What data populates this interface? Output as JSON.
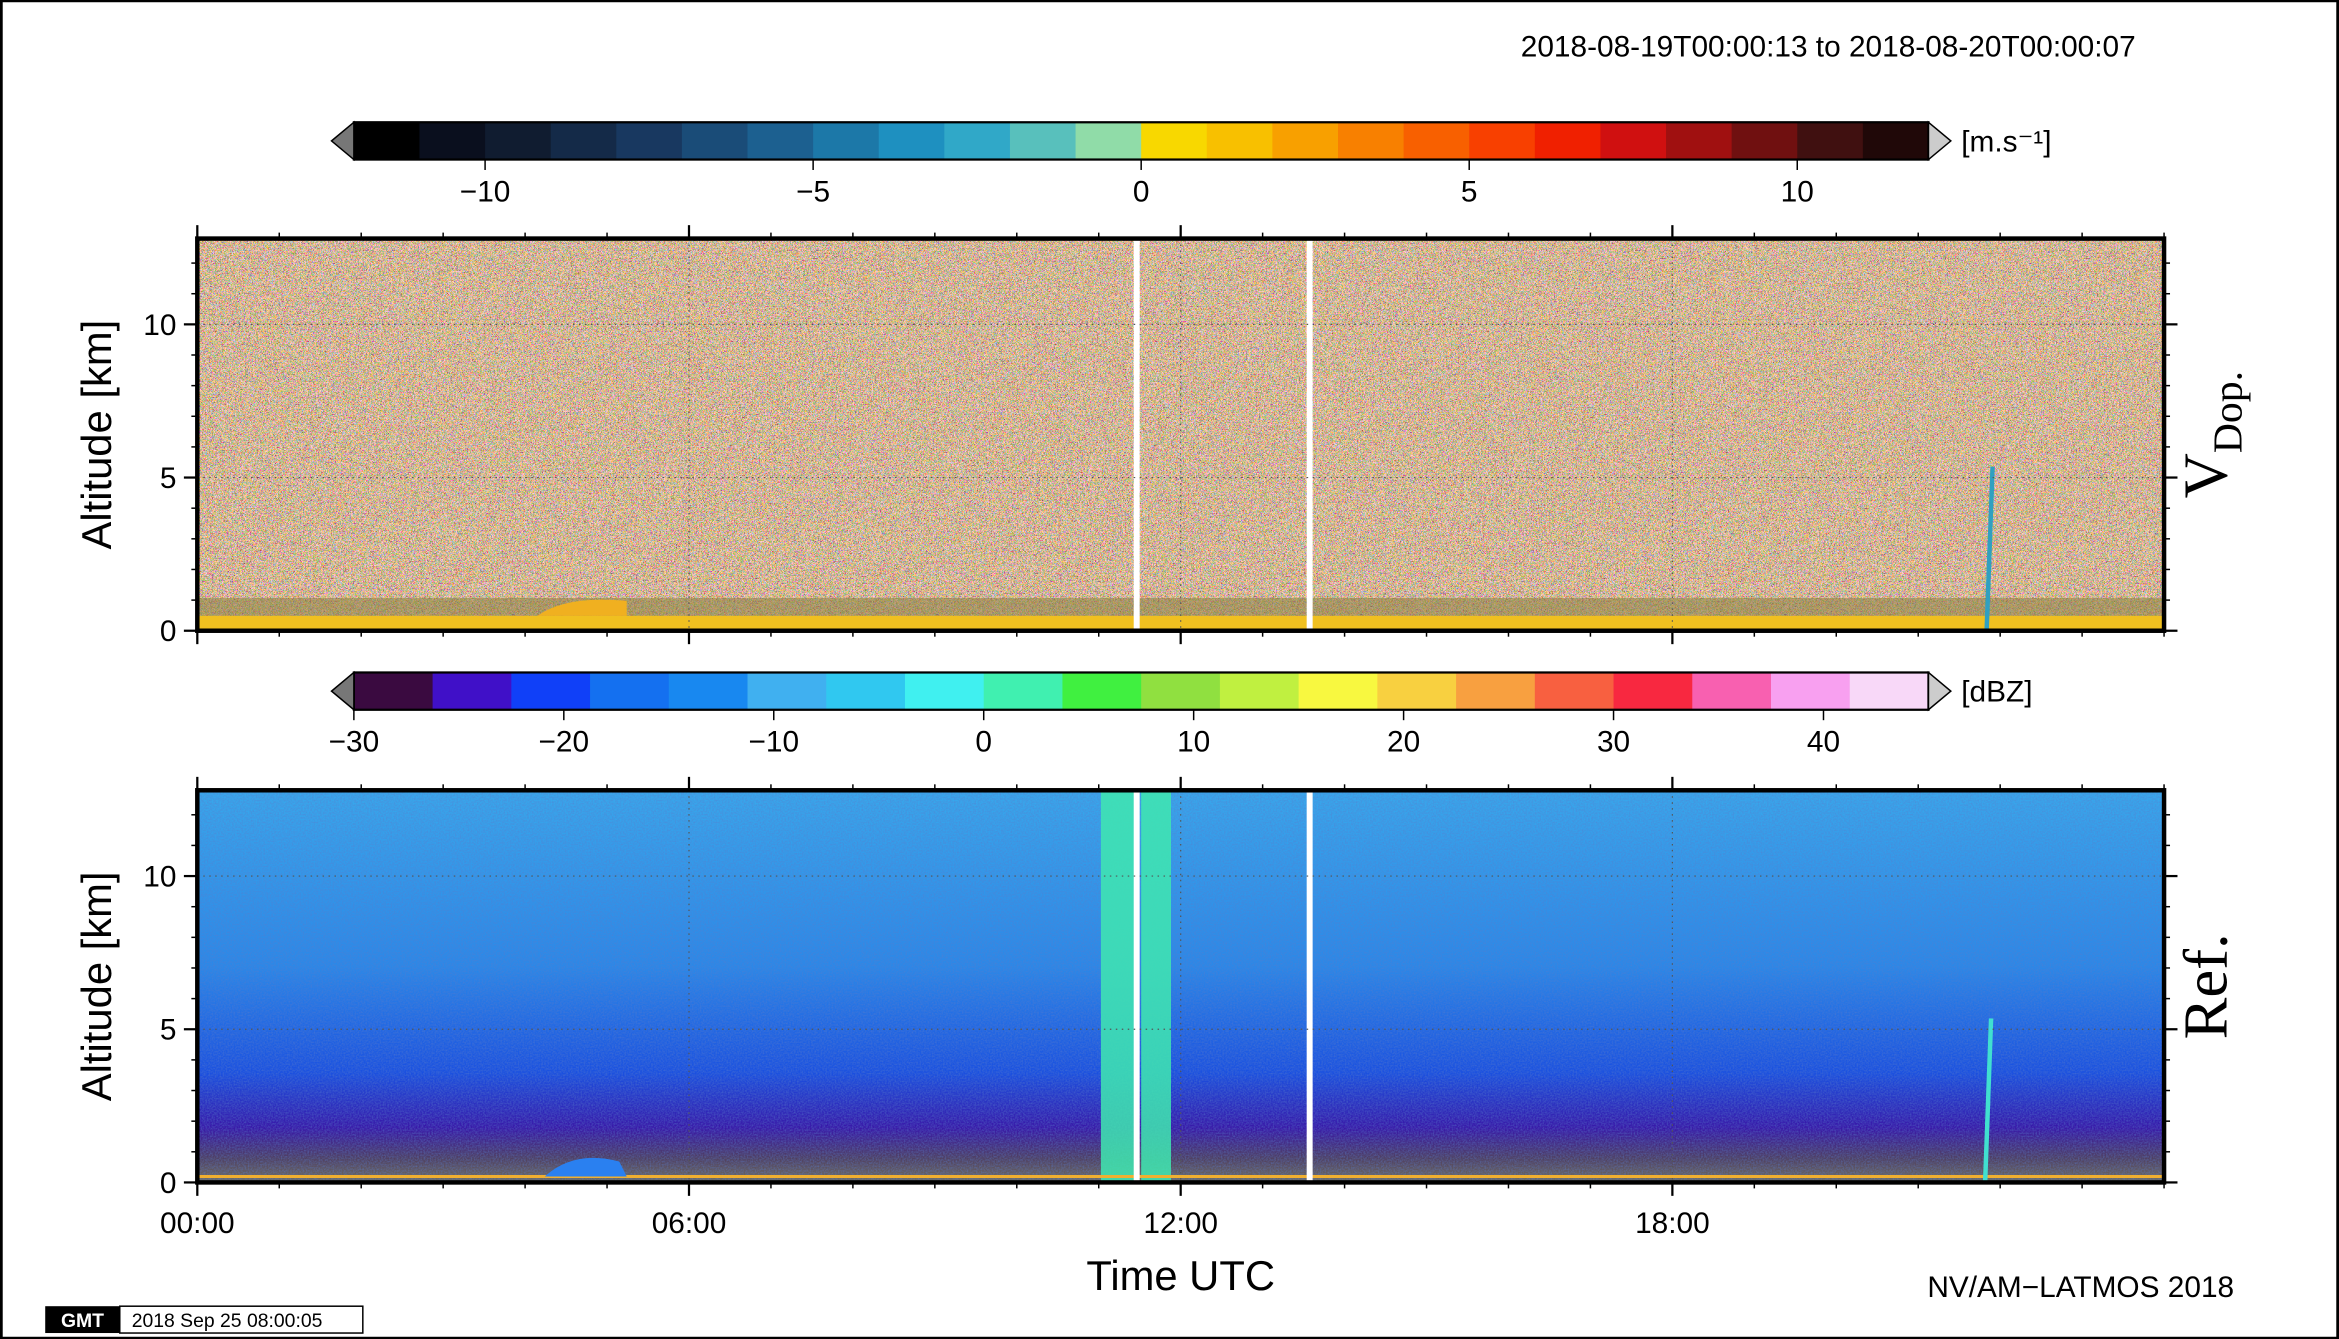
{
  "header": {
    "time_range": "2018-08-19T00:00:13 to 2018-08-20T00:00:07",
    "credit": "NV/AM−LATMOS 2018",
    "gmt_logo": "GMT",
    "timestamp": "2018 Sep 25 08:00:05"
  },
  "chart_data": [
    {
      "type": "heatmap",
      "panel_label": "V",
      "panel_label_sub": "Dop.",
      "ylabel": "Altitude [km]",
      "xlim": [
        0,
        24
      ],
      "ylim": [
        0,
        12.8
      ],
      "yticks": [
        0,
        5,
        10
      ],
      "grid": true,
      "colorbar": {
        "unit": "[m.s⁻¹]",
        "lim": [
          -12,
          12
        ],
        "ticks": [
          {
            "value": -10,
            "label": "−10"
          },
          {
            "value": -5,
            "label": "−5"
          },
          0,
          5,
          10
        ],
        "colors": [
          "#000000",
          "#0a0f1e",
          "#101c30",
          "#142a48",
          "#183860",
          "#1a4c78",
          "#1c6090",
          "#1c78a8",
          "#1e90c0",
          "#30a8c8",
          "#58c0bc",
          "#90dca8",
          "#f8d800",
          "#f8c000",
          "#f8a000",
          "#f88000",
          "#f86000",
          "#f84000",
          "#f02000",
          "#d01010",
          "#a01010",
          "#701010",
          "#401010",
          "#200808"
        ]
      }
    },
    {
      "type": "heatmap",
      "panel_label": "Ref.",
      "ylabel": "Altitude [km]",
      "xlabel": "Time UTC",
      "xlim": [
        0,
        24
      ],
      "xticks": [
        {
          "value": 0,
          "label": "00:00"
        },
        {
          "value": 6,
          "label": "06:00"
        },
        {
          "value": 12,
          "label": "12:00"
        },
        {
          "value": 18,
          "label": "18:00"
        }
      ],
      "ylim": [
        0,
        12.8
      ],
      "yticks": [
        0,
        5,
        10
      ],
      "grid": true,
      "colorbar": {
        "unit": "[dBZ]",
        "lim": [
          -30,
          45
        ],
        "ticks": [
          {
            "value": -30,
            "label": "−30"
          },
          {
            "value": -20,
            "label": "−20"
          },
          {
            "value": -10,
            "label": "−10"
          },
          0,
          10,
          20,
          30,
          40
        ],
        "colors": [
          "#3a0a40",
          "#4010c8",
          "#1040f8",
          "#1470f0",
          "#1888f0",
          "#40b0f0",
          "#30c8f0",
          "#40f0f0",
          "#40f0b0",
          "#40f040",
          "#90e040",
          "#c0f040",
          "#f8f840",
          "#f8d040",
          "#f8a040",
          "#f86040",
          "#f82840",
          "#f860b0",
          "#f8a0f0",
          "#f8d8f8"
        ]
      }
    }
  ]
}
